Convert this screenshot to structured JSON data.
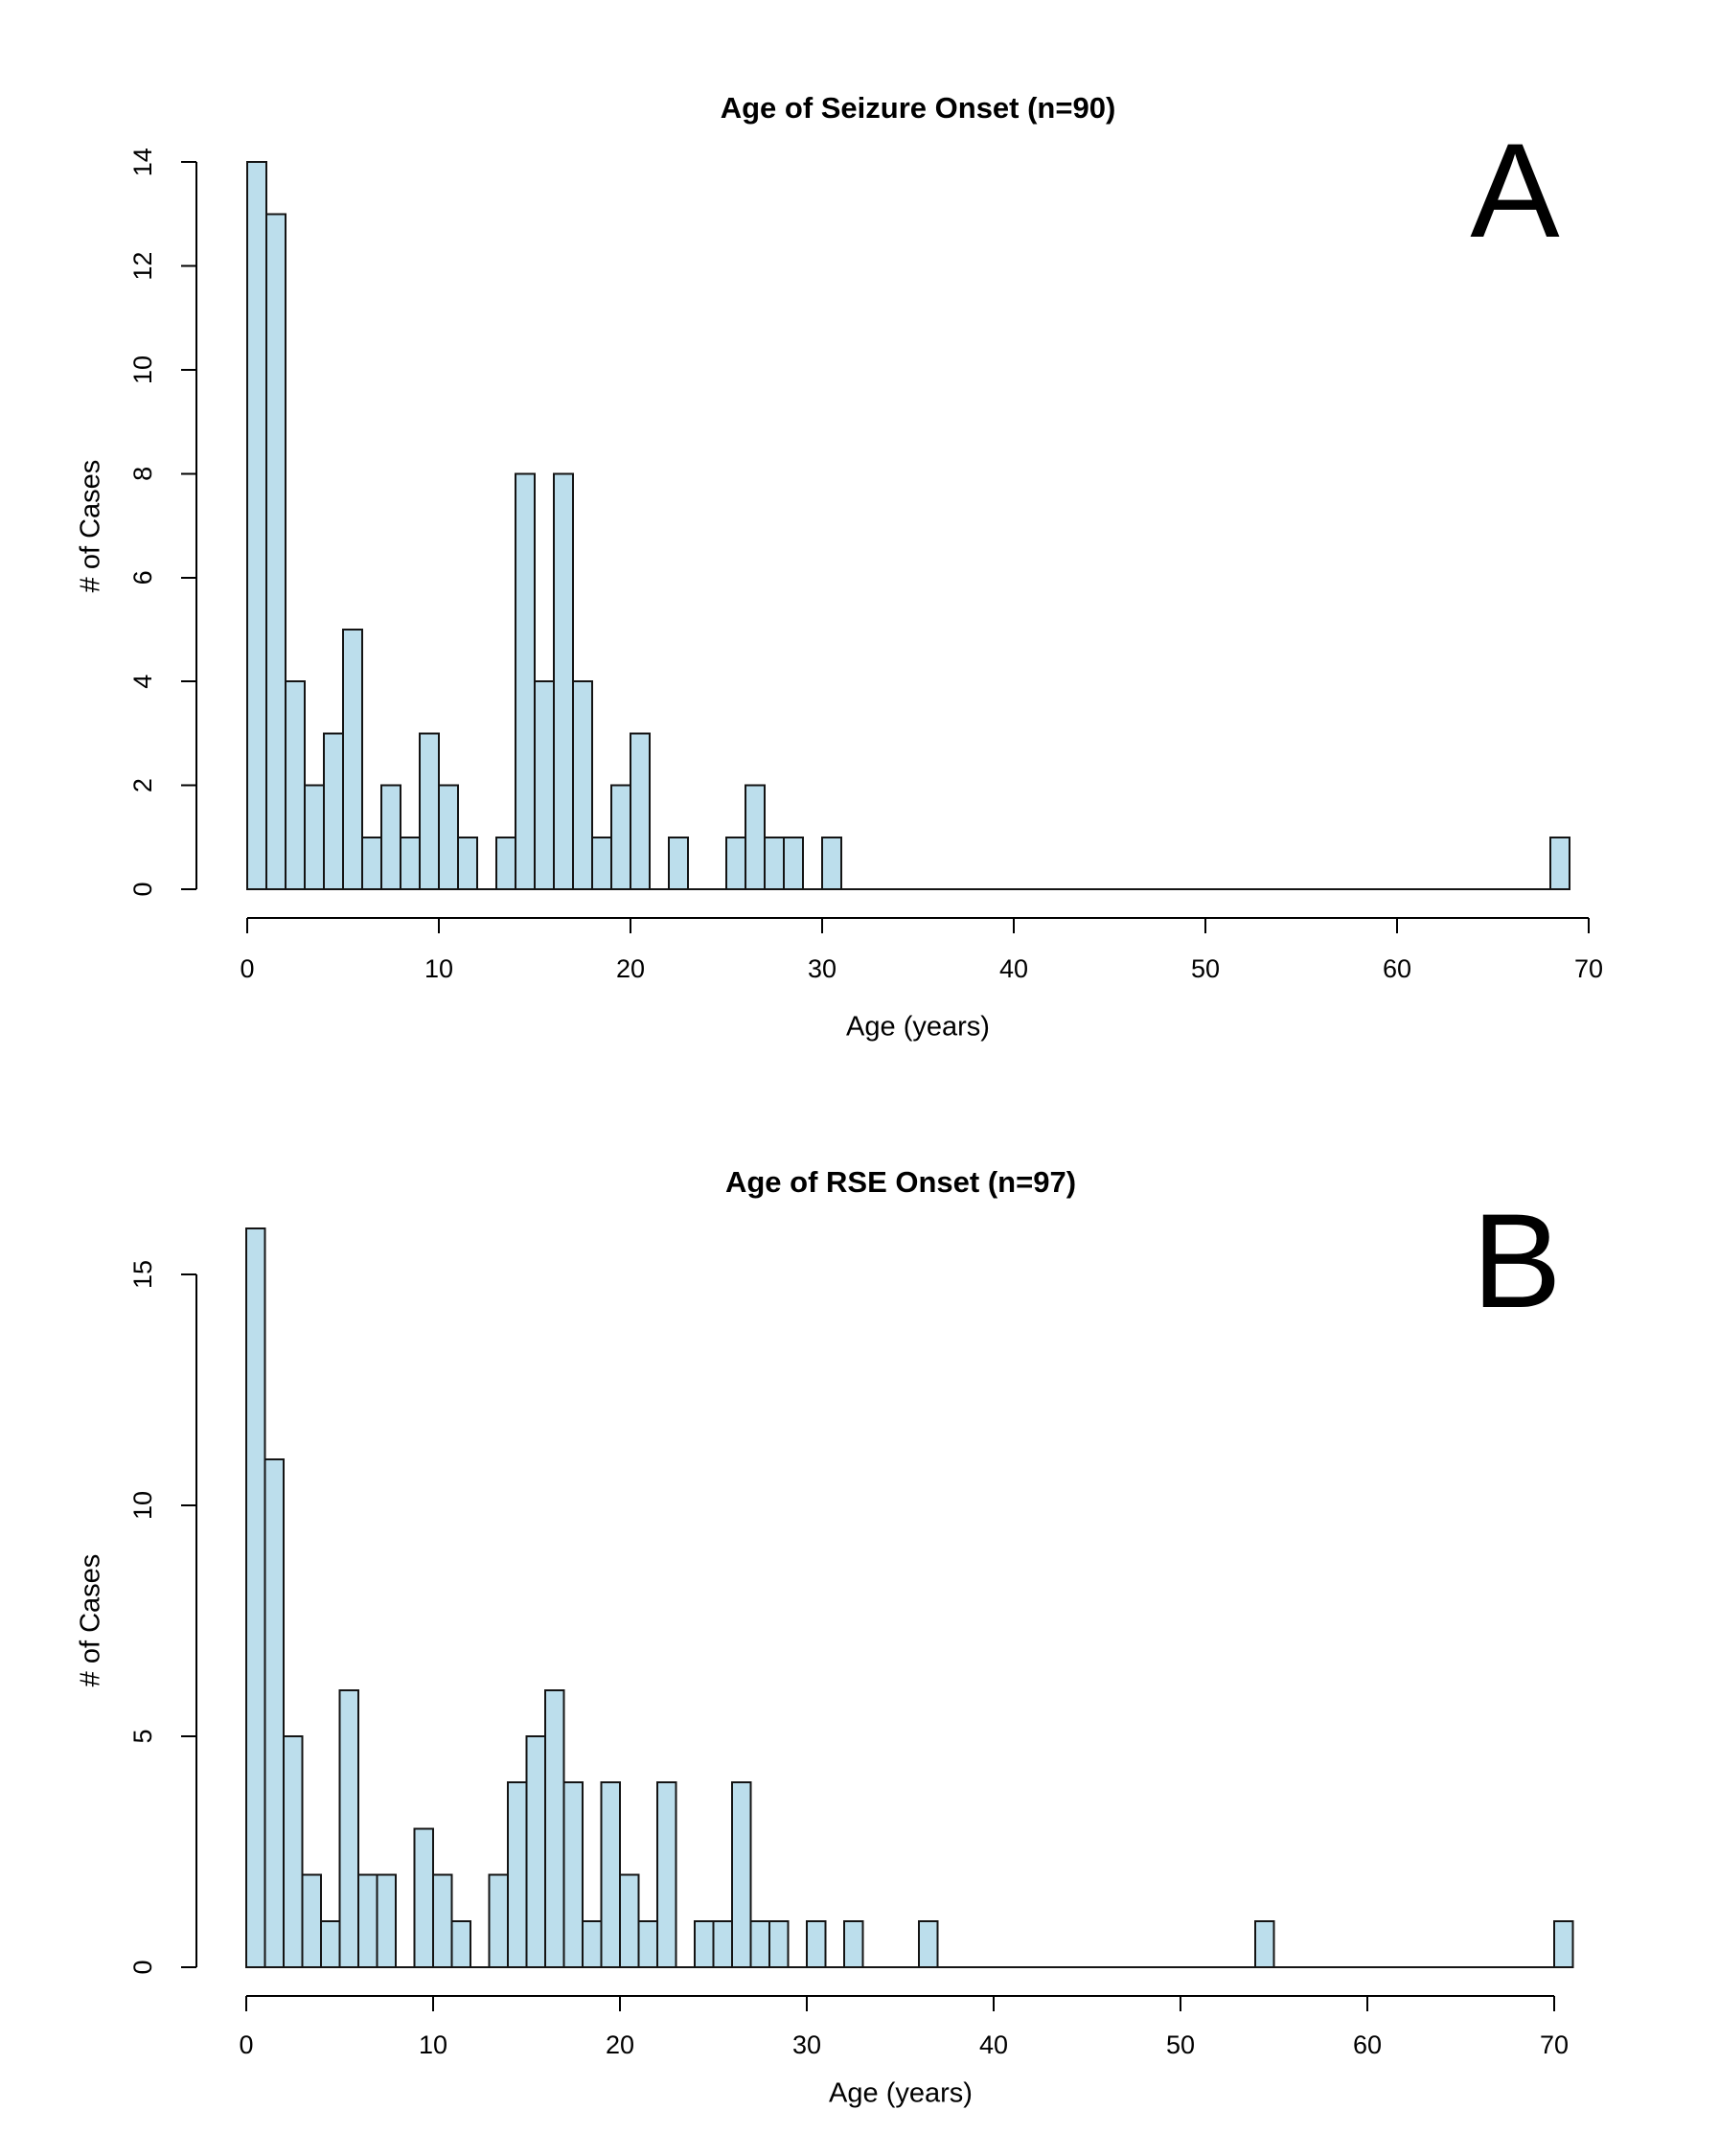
{
  "page": {
    "background": "#ffffff",
    "text_color": "#000000"
  },
  "chart_data": [
    {
      "type": "bar",
      "subtype": "histogram",
      "panel_label": "A",
      "title": "Age of Seizure Onset (n=90)",
      "xlabel": "Age (years)",
      "ylabel": "# of Cases",
      "n": 90,
      "bin_width_years": 1,
      "first_bin_start_age": 0,
      "counts": [
        14,
        13,
        4,
        2,
        3,
        5,
        1,
        2,
        1,
        3,
        2,
        1,
        0,
        1,
        8,
        4,
        8,
        4,
        1,
        2,
        3,
        0,
        1,
        0,
        0,
        1,
        2,
        1,
        1,
        0,
        1,
        0,
        0,
        0,
        0,
        0,
        0,
        0,
        0,
        0,
        0,
        0,
        0,
        0,
        0,
        0,
        0,
        0,
        0,
        0,
        0,
        0,
        0,
        0,
        0,
        0,
        0,
        0,
        0,
        0,
        0,
        0,
        0,
        0,
        0,
        0,
        0,
        0,
        1
      ],
      "x_ticks": [
        0,
        10,
        20,
        30,
        40,
        50,
        60,
        70
      ],
      "y_ticks": [
        0,
        2,
        4,
        6,
        8,
        10,
        12,
        14
      ],
      "xlim": [
        0,
        70
      ],
      "ylim": [
        0,
        14
      ],
      "grid": false,
      "legend": false,
      "bar_fill": "#bcdeec",
      "bar_stroke": "#141414"
    },
    {
      "type": "bar",
      "subtype": "histogram",
      "panel_label": "B",
      "title": "Age of RSE Onset (n=97)",
      "xlabel": "Age (years)",
      "ylabel": "# of Cases",
      "n": 97,
      "bin_width_years": 1,
      "first_bin_start_age": 0,
      "counts": [
        16,
        11,
        5,
        2,
        1,
        6,
        2,
        2,
        0,
        3,
        2,
        1,
        0,
        2,
        4,
        5,
        6,
        4,
        1,
        4,
        2,
        1,
        4,
        0,
        1,
        1,
        4,
        1,
        1,
        0,
        1,
        0,
        1,
        0,
        0,
        0,
        1,
        0,
        0,
        0,
        0,
        0,
        0,
        0,
        0,
        0,
        0,
        0,
        0,
        0,
        0,
        0,
        0,
        0,
        1,
        0,
        0,
        0,
        0,
        0,
        0,
        0,
        0,
        0,
        0,
        0,
        0,
        0,
        0,
        0,
        1
      ],
      "x_ticks": [
        0,
        10,
        20,
        30,
        40,
        50,
        60,
        70
      ],
      "y_ticks": [
        0,
        5,
        10,
        15
      ],
      "xlim": [
        0,
        71
      ],
      "ylim": [
        0,
        16
      ],
      "grid": false,
      "legend": false,
      "bar_fill": "#bcdeec",
      "bar_stroke": "#141414"
    }
  ]
}
